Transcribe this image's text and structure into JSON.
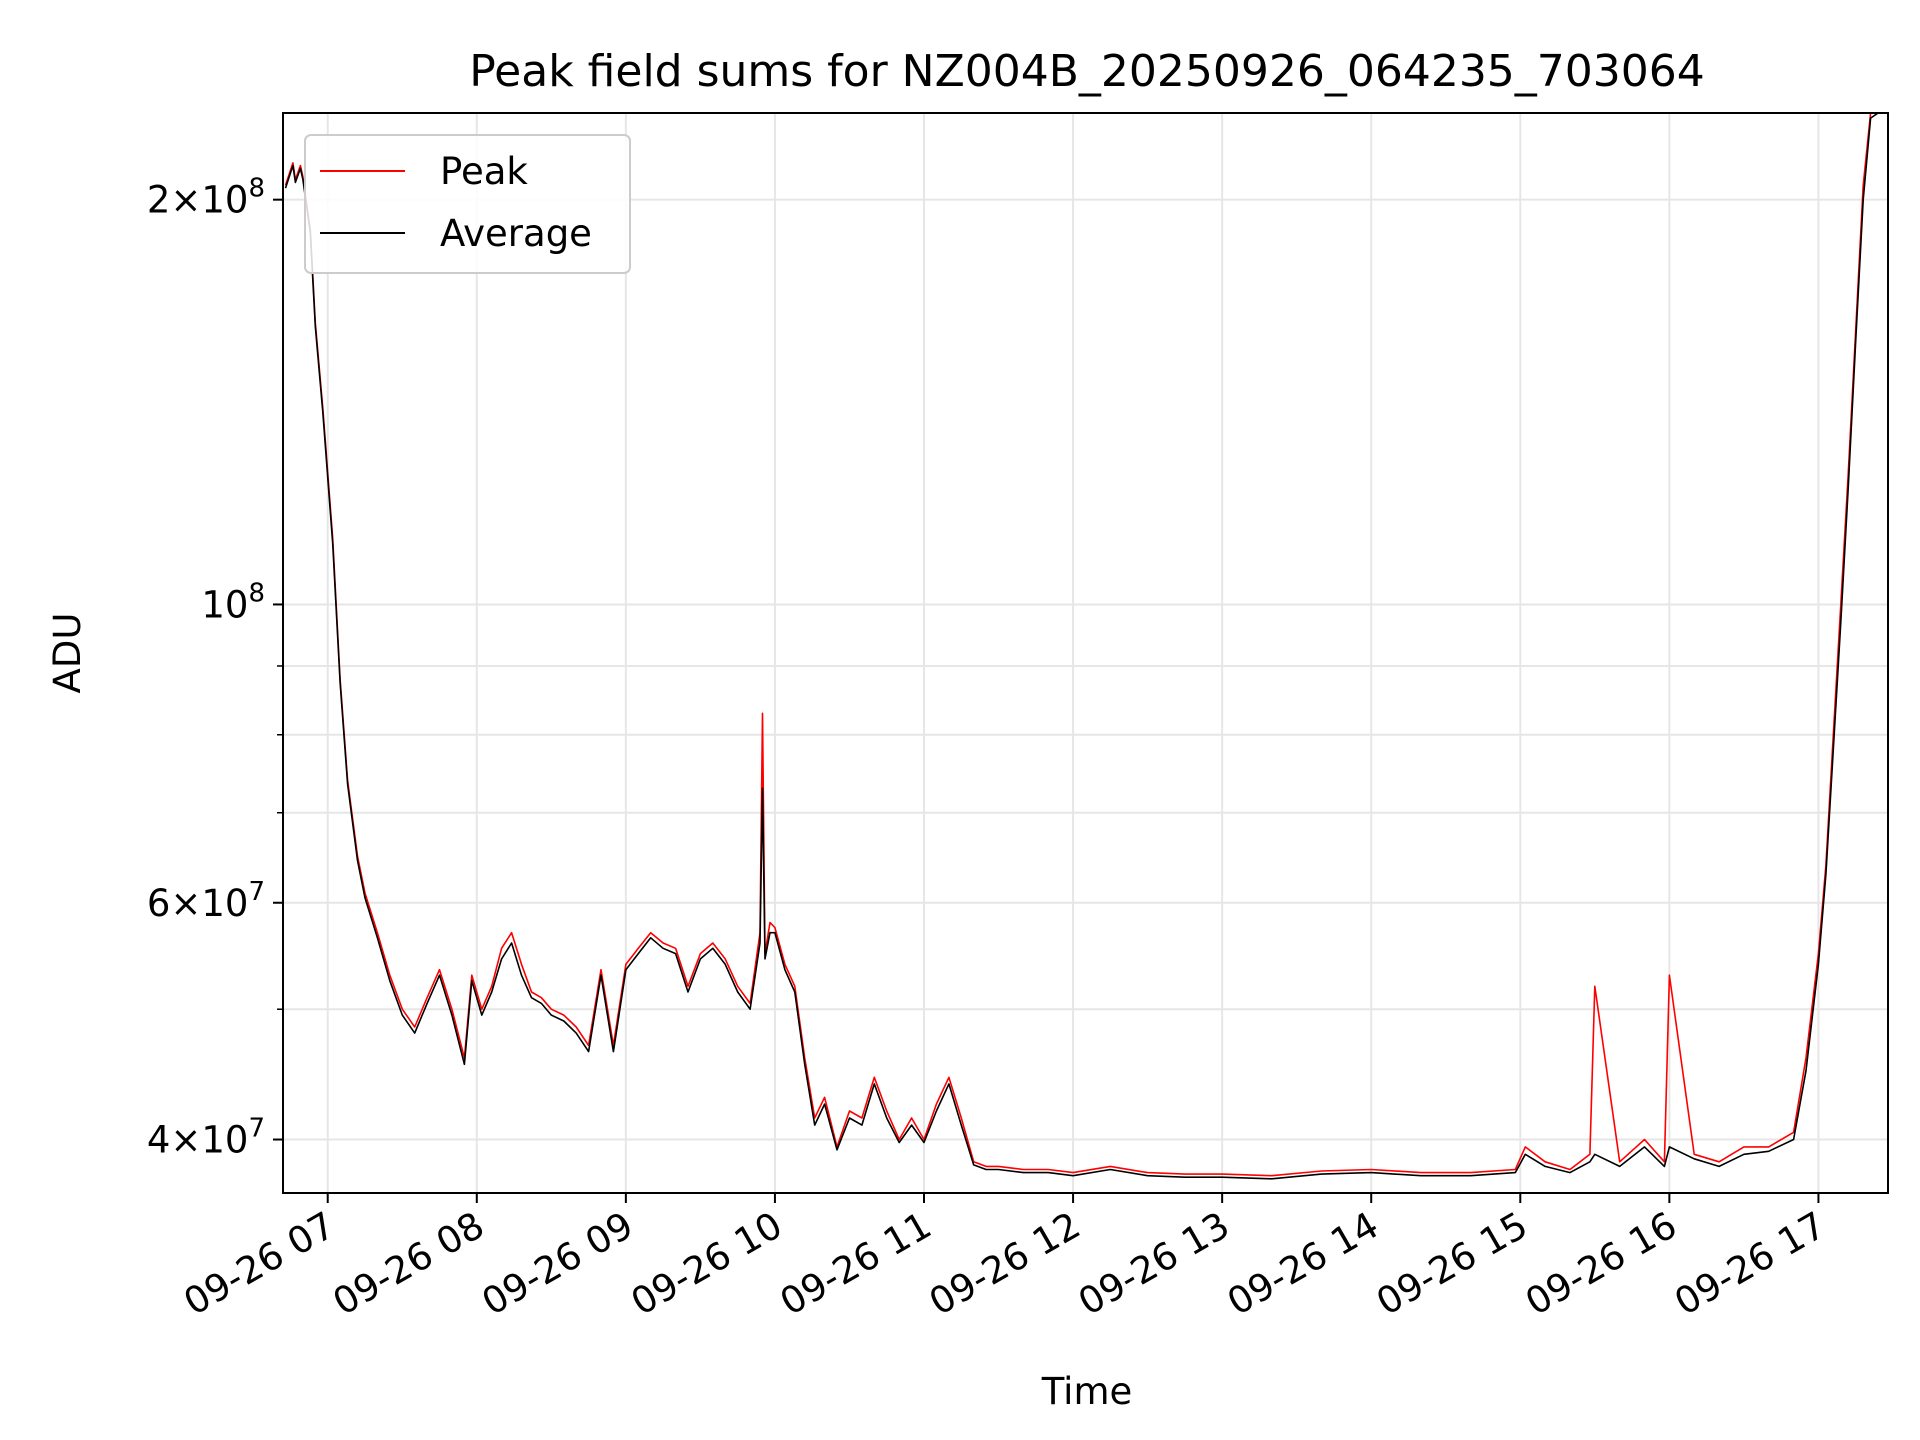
{
  "chart_data": {
    "type": "line",
    "title": "Peak field sums for NZ004B_20250926_064235_703064",
    "xlabel": "Time",
    "ylabel": "ADU",
    "y_scale": "log",
    "grid": true,
    "legend_position": "top-left",
    "x_range": [
      "2025-09-26 06:42",
      "2025-09-26 17:28"
    ],
    "ylim": [
      36500000,
      232000000
    ],
    "x_ticks": [
      "09-26 07",
      "09-26 08",
      "09-26 09",
      "09-26 10",
      "09-26 11",
      "09-26 12",
      "09-26 13",
      "09-26 14",
      "09-26 15",
      "09-26 16",
      "09-26 17"
    ],
    "y_ticks": [
      {
        "value": 200000000,
        "mantissa": "2",
        "exponent": "8"
      },
      {
        "value": 100000000,
        "mantissa": "",
        "exponent": "8"
      },
      {
        "value": 60000000,
        "mantissa": "6",
        "exponent": "7"
      },
      {
        "value": 40000000,
        "mantissa": "4",
        "exponent": "7"
      }
    ],
    "series": [
      {
        "name": "Peak",
        "color": "#ff0000",
        "x": [
          "2025-09-26 06:43",
          "2025-09-26 06:46",
          "2025-09-26 06:47",
          "2025-09-26 06:49",
          "2025-09-26 06:50",
          "2025-09-26 06:53",
          "2025-09-26 06:55",
          "2025-09-26 06:58",
          "2025-09-26 07:02",
          "2025-09-26 07:05",
          "2025-09-26 07:08",
          "2025-09-26 07:12",
          "2025-09-26 07:15",
          "2025-09-26 07:20",
          "2025-09-26 07:25",
          "2025-09-26 07:30",
          "2025-09-26 07:35",
          "2025-09-26 07:40",
          "2025-09-26 07:45",
          "2025-09-26 07:50",
          "2025-09-26 07:55",
          "2025-09-26 07:58",
          "2025-09-26 08:02",
          "2025-09-26 08:06",
          "2025-09-26 08:10",
          "2025-09-26 08:14",
          "2025-09-26 08:18",
          "2025-09-26 08:22",
          "2025-09-26 08:26",
          "2025-09-26 08:30",
          "2025-09-26 08:35",
          "2025-09-26 08:40",
          "2025-09-26 08:45",
          "2025-09-26 08:50",
          "2025-09-26 08:55",
          "2025-09-26 09:00",
          "2025-09-26 09:05",
          "2025-09-26 09:10",
          "2025-09-26 09:15",
          "2025-09-26 09:20",
          "2025-09-26 09:25",
          "2025-09-26 09:30",
          "2025-09-26 09:35",
          "2025-09-26 09:40",
          "2025-09-26 09:45",
          "2025-09-26 09:50",
          "2025-09-26 09:54",
          "2025-09-26 09:55",
          "2025-09-26 09:56",
          "2025-09-26 09:58",
          "2025-09-26 10:00",
          "2025-09-26 10:04",
          "2025-09-26 10:08",
          "2025-09-26 10:12",
          "2025-09-26 10:16",
          "2025-09-26 10:20",
          "2025-09-26 10:25",
          "2025-09-26 10:30",
          "2025-09-26 10:35",
          "2025-09-26 10:40",
          "2025-09-26 10:45",
          "2025-09-26 10:50",
          "2025-09-26 10:55",
          "2025-09-26 11:00",
          "2025-09-26 11:05",
          "2025-09-26 11:10",
          "2025-09-26 11:15",
          "2025-09-26 11:20",
          "2025-09-26 11:25",
          "2025-09-26 11:30",
          "2025-09-26 11:40",
          "2025-09-26 11:50",
          "2025-09-26 12:00",
          "2025-09-26 12:15",
          "2025-09-26 12:30",
          "2025-09-26 12:45",
          "2025-09-26 13:00",
          "2025-09-26 13:20",
          "2025-09-26 13:40",
          "2025-09-26 14:00",
          "2025-09-26 14:20",
          "2025-09-26 14:40",
          "2025-09-26 14:58",
          "2025-09-26 15:02",
          "2025-09-26 15:10",
          "2025-09-26 15:20",
          "2025-09-26 15:28",
          "2025-09-26 15:30",
          "2025-09-26 15:40",
          "2025-09-26 15:50",
          "2025-09-26 15:58",
          "2025-09-26 16:00",
          "2025-09-26 16:10",
          "2025-09-26 16:20",
          "2025-09-26 16:30",
          "2025-09-26 16:40",
          "2025-09-26 16:50",
          "2025-09-26 16:55",
          "2025-09-26 17:00",
          "2025-09-26 17:03",
          "2025-09-26 17:06",
          "2025-09-26 17:09",
          "2025-09-26 17:12",
          "2025-09-26 17:15",
          "2025-09-26 17:18",
          "2025-09-26 17:21",
          "2025-09-26 17:24"
        ],
        "y": [
          205000000,
          213000000,
          207000000,
          212000000,
          208000000,
          190000000,
          162000000,
          140000000,
          112000000,
          88000000,
          74000000,
          65000000,
          61000000,
          57000000,
          53000000,
          50000000,
          48500000,
          51000000,
          53500000,
          50000000,
          46000000,
          53000000,
          50000000,
          52000000,
          55500000,
          57000000,
          54000000,
          51500000,
          51000000,
          50000000,
          49500000,
          48500000,
          47000000,
          53500000,
          47000000,
          54000000,
          55500000,
          57000000,
          56000000,
          55500000,
          52000000,
          55000000,
          56000000,
          54500000,
          52000000,
          50500000,
          57000000,
          83000000,
          55000000,
          58000000,
          57500000,
          54000000,
          52000000,
          46000000,
          41500000,
          43000000,
          39500000,
          42000000,
          41500000,
          44500000,
          42000000,
          40000000,
          41500000,
          40000000,
          42500000,
          44500000,
          41500000,
          38500000,
          38200000,
          38200000,
          38000000,
          38000000,
          37800000,
          38200000,
          37800000,
          37700000,
          37700000,
          37600000,
          37900000,
          38000000,
          37800000,
          37800000,
          38000000,
          39500000,
          38500000,
          38000000,
          39000000,
          52000000,
          38500000,
          40000000,
          38500000,
          53000000,
          39000000,
          38500000,
          39500000,
          39500000,
          40500000,
          46000000,
          55000000,
          64000000,
          80000000,
          100000000,
          125000000,
          160000000,
          205000000,
          232000000,
          232000000
        ]
      },
      {
        "name": "Average",
        "color": "#000000",
        "x": [
          "2025-09-26 06:43",
          "2025-09-26 06:46",
          "2025-09-26 06:47",
          "2025-09-26 06:49",
          "2025-09-26 06:50",
          "2025-09-26 06:53",
          "2025-09-26 06:55",
          "2025-09-26 06:58",
          "2025-09-26 07:02",
          "2025-09-26 07:05",
          "2025-09-26 07:08",
          "2025-09-26 07:12",
          "2025-09-26 07:15",
          "2025-09-26 07:20",
          "2025-09-26 07:25",
          "2025-09-26 07:30",
          "2025-09-26 07:35",
          "2025-09-26 07:40",
          "2025-09-26 07:45",
          "2025-09-26 07:50",
          "2025-09-26 07:55",
          "2025-09-26 07:58",
          "2025-09-26 08:02",
          "2025-09-26 08:06",
          "2025-09-26 08:10",
          "2025-09-26 08:14",
          "2025-09-26 08:18",
          "2025-09-26 08:22",
          "2025-09-26 08:26",
          "2025-09-26 08:30",
          "2025-09-26 08:35",
          "2025-09-26 08:40",
          "2025-09-26 08:45",
          "2025-09-26 08:50",
          "2025-09-26 08:55",
          "2025-09-26 09:00",
          "2025-09-26 09:05",
          "2025-09-26 09:10",
          "2025-09-26 09:15",
          "2025-09-26 09:20",
          "2025-09-26 09:25",
          "2025-09-26 09:30",
          "2025-09-26 09:35",
          "2025-09-26 09:40",
          "2025-09-26 09:45",
          "2025-09-26 09:50",
          "2025-09-26 09:54",
          "2025-09-26 09:55",
          "2025-09-26 09:56",
          "2025-09-26 09:58",
          "2025-09-26 10:00",
          "2025-09-26 10:04",
          "2025-09-26 10:08",
          "2025-09-26 10:12",
          "2025-09-26 10:16",
          "2025-09-26 10:20",
          "2025-09-26 10:25",
          "2025-09-26 10:30",
          "2025-09-26 10:35",
          "2025-09-26 10:40",
          "2025-09-26 10:45",
          "2025-09-26 10:50",
          "2025-09-26 10:55",
          "2025-09-26 11:00",
          "2025-09-26 11:05",
          "2025-09-26 11:10",
          "2025-09-26 11:15",
          "2025-09-26 11:20",
          "2025-09-26 11:25",
          "2025-09-26 11:30",
          "2025-09-26 11:40",
          "2025-09-26 11:50",
          "2025-09-26 12:00",
          "2025-09-26 12:15",
          "2025-09-26 12:30",
          "2025-09-26 12:45",
          "2025-09-26 13:00",
          "2025-09-26 13:20",
          "2025-09-26 13:40",
          "2025-09-26 14:00",
          "2025-09-26 14:20",
          "2025-09-26 14:40",
          "2025-09-26 14:58",
          "2025-09-26 15:02",
          "2025-09-26 15:10",
          "2025-09-26 15:20",
          "2025-09-26 15:28",
          "2025-09-26 15:30",
          "2025-09-26 15:40",
          "2025-09-26 15:50",
          "2025-09-26 15:58",
          "2025-09-26 16:00",
          "2025-09-26 16:10",
          "2025-09-26 16:20",
          "2025-09-26 16:30",
          "2025-09-26 16:40",
          "2025-09-26 16:50",
          "2025-09-26 16:55",
          "2025-09-26 17:00",
          "2025-09-26 17:03",
          "2025-09-26 17:06",
          "2025-09-26 17:09",
          "2025-09-26 17:12",
          "2025-09-26 17:15",
          "2025-09-26 17:18",
          "2025-09-26 17:21",
          "2025-09-26 17:24"
        ],
        "y": [
          204000000,
          212000000,
          206000000,
          211000000,
          207000000,
          189000000,
          161000000,
          139000000,
          111000000,
          87500000,
          73500000,
          64500000,
          60500000,
          56500000,
          52500000,
          49500000,
          48000000,
          50500000,
          53000000,
          49500000,
          45500000,
          52500000,
          49500000,
          51500000,
          54500000,
          56000000,
          53000000,
          51000000,
          50500000,
          49500000,
          49000000,
          48000000,
          46500000,
          53000000,
          46500000,
          53500000,
          55000000,
          56500000,
          55500000,
          55000000,
          51500000,
          54500000,
          55500000,
          54000000,
          51500000,
          50000000,
          56000000,
          73000000,
          54500000,
          57000000,
          57000000,
          53500000,
          51500000,
          45500000,
          41000000,
          42500000,
          39300000,
          41500000,
          41000000,
          44000000,
          41500000,
          39800000,
          41000000,
          39800000,
          42000000,
          44000000,
          41000000,
          38300000,
          38000000,
          38000000,
          37800000,
          37800000,
          37600000,
          38000000,
          37600000,
          37500000,
          37500000,
          37400000,
          37700000,
          37800000,
          37600000,
          37600000,
          37800000,
          39000000,
          38200000,
          37800000,
          38500000,
          39000000,
          38200000,
          39500000,
          38200000,
          39500000,
          38700000,
          38200000,
          39000000,
          39200000,
          40000000,
          45000000,
          54000000,
          63000000,
          78000000,
          97000000,
          122000000,
          157000000,
          200000000,
          230000000,
          232000000
        ]
      }
    ]
  }
}
